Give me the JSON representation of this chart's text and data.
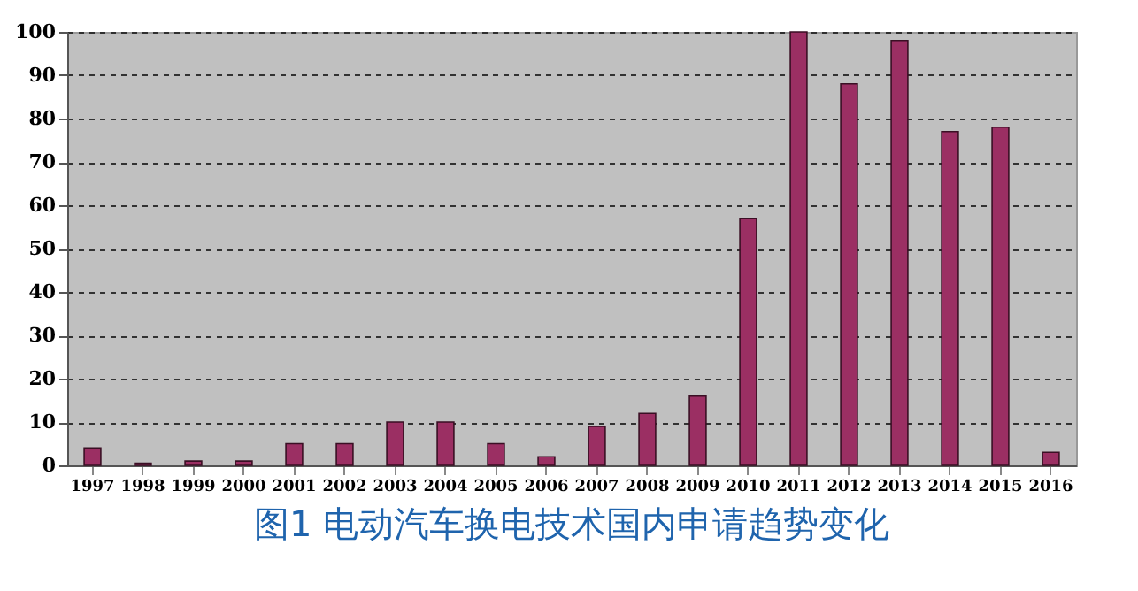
{
  "chart_data": {
    "type": "bar",
    "title": "图1  电动汽车换电技术国内申请趋势变化",
    "categories": [
      "1997",
      "1998",
      "1999",
      "2000",
      "2001",
      "2002",
      "2003",
      "2004",
      "2005",
      "2006",
      "2007",
      "2008",
      "2009",
      "2010",
      "2011",
      "2012",
      "2013",
      "2014",
      "2015",
      "2016"
    ],
    "values": [
      4,
      0.5,
      1,
      1,
      5,
      5,
      10,
      10,
      5,
      2,
      9,
      12,
      16,
      57,
      100,
      88,
      98,
      77,
      78,
      3
    ],
    "color": "#9b2f63",
    "ylim": [
      0,
      100
    ],
    "yticks": [
      0,
      10,
      20,
      30,
      40,
      50,
      60,
      70,
      80,
      90,
      100
    ],
    "grid": "y",
    "line_style": "dashed"
  }
}
